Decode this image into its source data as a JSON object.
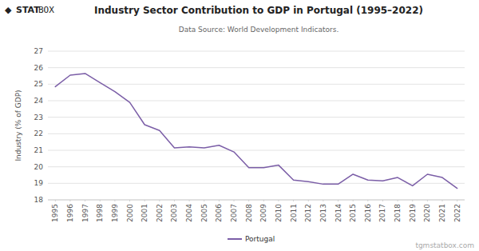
{
  "chart_data": {
    "type": "line",
    "title": "Industry Sector Contribution to GDP in Portugal (1995–2022)",
    "subtitle": "Data Source: World Development Indicators.",
    "y_label": "Industry (% of GDP)",
    "logo": [
      "◆",
      "STAT",
      "BOX"
    ],
    "watermark": "tgmstatbox.com",
    "x": [
      1995,
      1996,
      1997,
      1998,
      1999,
      2000,
      2001,
      2002,
      2003,
      2004,
      2005,
      2006,
      2007,
      2008,
      2009,
      2010,
      2011,
      2012,
      2013,
      2014,
      2015,
      2016,
      2017,
      2018,
      2019,
      2020,
      2021,
      2022
    ],
    "series": [
      {
        "name": "Portugal",
        "color": "#7b5ea7",
        "values": [
          24.85,
          25.55,
          25.65,
          25.1,
          24.55,
          23.9,
          22.55,
          22.2,
          21.15,
          21.2,
          21.15,
          21.3,
          20.9,
          19.95,
          19.95,
          20.1,
          19.2,
          19.1,
          18.95,
          18.95,
          19.55,
          19.2,
          19.15,
          19.35,
          18.85,
          19.55,
          19.35,
          18.7
        ]
      }
    ],
    "xlim": [
      1994.5,
      2022.5
    ],
    "xticks": [
      1995,
      1996,
      1997,
      1998,
      1999,
      2000,
      2001,
      2002,
      2003,
      2004,
      2005,
      2006,
      2007,
      2008,
      2009,
      2010,
      2011,
      2012,
      2013,
      2014,
      2015,
      2016,
      2017,
      2018,
      2019,
      2020,
      2021,
      2022
    ],
    "ylim": [
      18,
      27
    ],
    "yticks": [
      18,
      19,
      20,
      21,
      22,
      23,
      24,
      25,
      26,
      27
    ],
    "grid": true,
    "legend": "bottom"
  }
}
